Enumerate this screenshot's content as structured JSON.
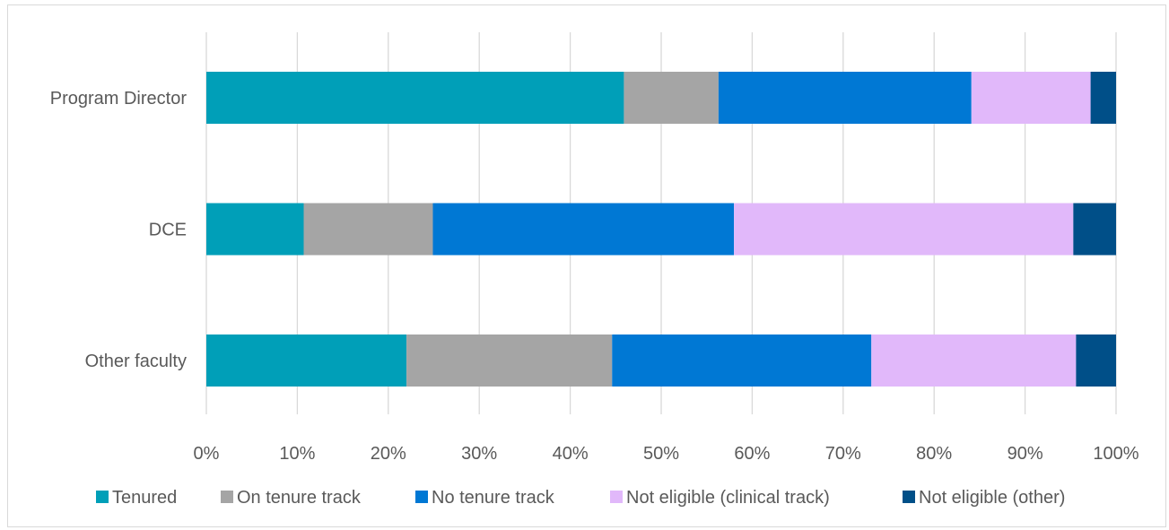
{
  "chart_data": {
    "type": "bar",
    "orientation": "horizontal",
    "stacked": true,
    "normalized": true,
    "title": "",
    "xlabel": "",
    "ylabel": "",
    "categories": [
      "Program Director",
      "DCE",
      "Other faculty"
    ],
    "x_ticks": [
      "0%",
      "10%",
      "20%",
      "30%",
      "40%",
      "50%",
      "60%",
      "70%",
      "80%",
      "90%",
      "100%"
    ],
    "xlim": [
      0,
      100
    ],
    "grid": "vertical",
    "legend_position": "bottom",
    "series": [
      {
        "name": "Tenured",
        "color": "#009fb8",
        "values": [
          45.9,
          10.7,
          22.0
        ]
      },
      {
        "name": "On tenure track",
        "color": "#a5a5a5",
        "values": [
          10.4,
          14.2,
          22.6
        ]
      },
      {
        "name": "No tenure track",
        "color": "#0078d4",
        "values": [
          27.8,
          33.1,
          28.5
        ]
      },
      {
        "name": "Not eligible (clinical track)",
        "color": "#e1b8fa",
        "values": [
          13.1,
          37.3,
          22.5
        ]
      },
      {
        "name": "Not eligible (other)",
        "color": "#004f88",
        "values": [
          2.8,
          4.7,
          4.4
        ]
      }
    ]
  }
}
